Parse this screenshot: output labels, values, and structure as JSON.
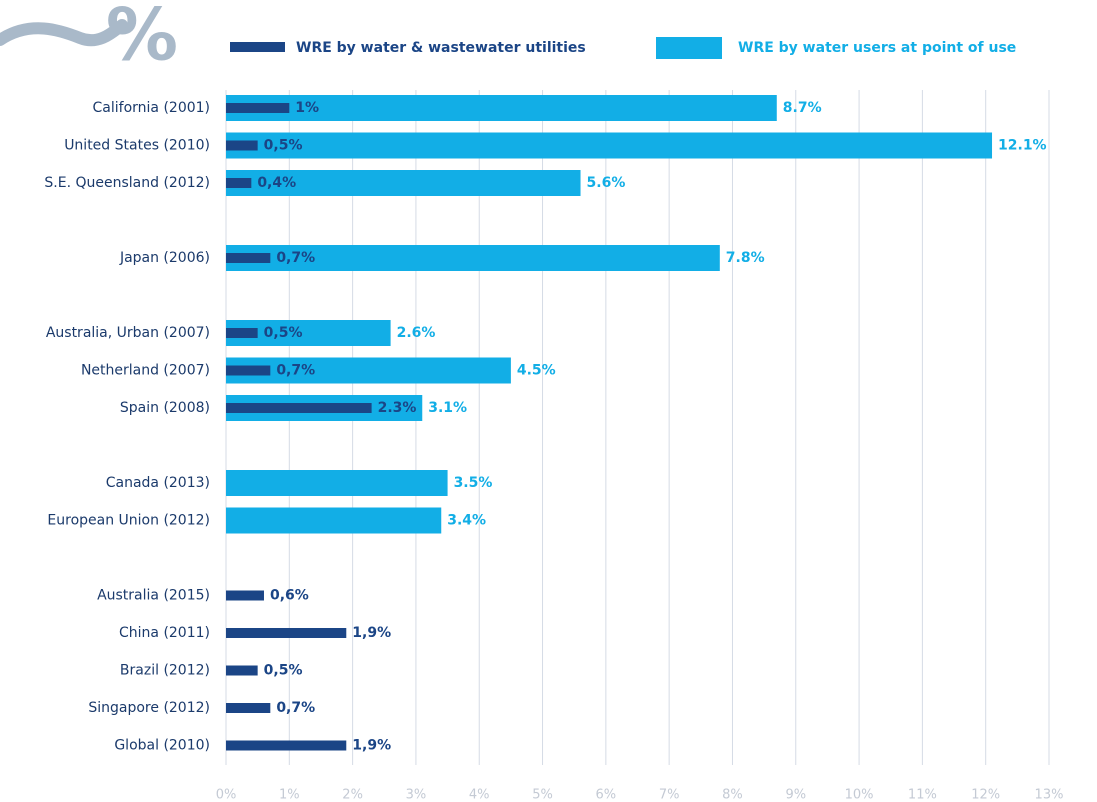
{
  "symbol": "%",
  "chart_data": {
    "type": "barh",
    "categories": [
      "California (2001)",
      "United States (2010)",
      "S.E. Queensland (2012)",
      null,
      "Japan (2006)",
      null,
      "Australia, Urban (2007)",
      "Netherland (2007)",
      "Spain (2008)",
      null,
      "Canada (2013)",
      "European Union (2012)",
      null,
      "Australia (2015)",
      "China (2011)",
      "Brazil (2012)",
      "Singapore (2012)",
      "Global (2010)"
    ],
    "series": [
      {
        "name": "WRE by water users at point of use",
        "color": "#12aee6",
        "values": [
          8.7,
          12.1,
          5.6,
          null,
          7.8,
          null,
          2.6,
          4.5,
          3.1,
          null,
          3.5,
          3.4,
          null,
          null,
          null,
          null,
          null,
          null
        ],
        "value_labels": [
          "8.7%",
          "12.1%",
          "5.6%",
          null,
          "7.8%",
          null,
          "2.6%",
          "4.5%",
          "3.1%",
          null,
          "3.5%",
          "3.4%",
          null,
          null,
          null,
          null,
          null,
          null
        ]
      },
      {
        "name": "WRE by water & wastewater utilities",
        "color": "#1b4586",
        "values": [
          1,
          0.5,
          0.4,
          null,
          0.7,
          null,
          0.5,
          0.7,
          2.3,
          null,
          null,
          null,
          null,
          0.6,
          1.9,
          0.5,
          0.7,
          1.9
        ],
        "value_labels": [
          "1%",
          "0,5%",
          "0,4%",
          null,
          "0,7%",
          null,
          "0,5%",
          "0,7%",
          "2.3%",
          null,
          null,
          null,
          null,
          "0,6%",
          "1,9%",
          "0,5%",
          "0,7%",
          "1,9%"
        ]
      }
    ],
    "xlim": [
      0,
      13
    ],
    "xticks": [
      {
        "value": 0,
        "label": "0%"
      },
      {
        "value": 1,
        "label": "1%"
      },
      {
        "value": 2,
        "label": "2%"
      },
      {
        "value": 3,
        "label": "3%"
      },
      {
        "value": 4,
        "label": "4%"
      },
      {
        "value": 5,
        "label": "5%"
      },
      {
        "value": 6,
        "label": "6%"
      },
      {
        "value": 7,
        "label": "7%"
      },
      {
        "value": 8,
        "label": "8%"
      },
      {
        "value": 9,
        "label": "9%"
      },
      {
        "value": 10,
        "label": "10%"
      },
      {
        "value": 11,
        "label": "11%"
      },
      {
        "value": 12,
        "label": "12%"
      },
      {
        "value": 13,
        "label": "13%"
      }
    ],
    "grid": true
  }
}
